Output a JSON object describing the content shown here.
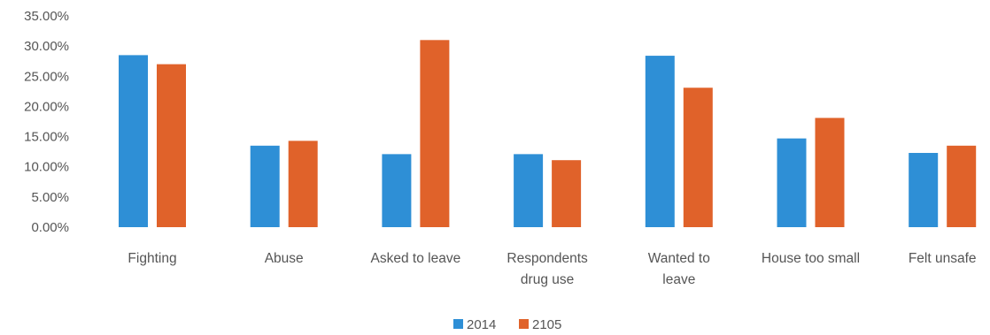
{
  "chart_data": {
    "type": "bar",
    "title": "",
    "xlabel": "",
    "ylabel": "",
    "categories": [
      [
        "Fighting"
      ],
      [
        "Abuse"
      ],
      [
        "Asked to leave"
      ],
      [
        "Respondents",
        "drug use"
      ],
      [
        "Wanted to",
        "leave"
      ],
      [
        "House too small"
      ],
      [
        "Felt unsafe"
      ]
    ],
    "series": [
      {
        "name": "2014",
        "color": "#2e8fd6",
        "values": [
          28.5,
          13.5,
          12.1,
          12.1,
          28.4,
          14.7,
          12.3
        ]
      },
      {
        "name": "2105",
        "color": "#e0622a",
        "values": [
          27.0,
          14.3,
          31.0,
          11.1,
          23.1,
          18.1,
          13.5
        ]
      }
    ],
    "ylim": [
      0,
      35
    ],
    "yticks": [
      "35.00%",
      "30.00%",
      "25.00%",
      "20.00%",
      "15.00%",
      "10.00%",
      "5.00%",
      "0.00%"
    ],
    "ytick_values": [
      35,
      30,
      25,
      20,
      15,
      10,
      5,
      0
    ],
    "grid": false,
    "legend_position": "bottom-center"
  }
}
